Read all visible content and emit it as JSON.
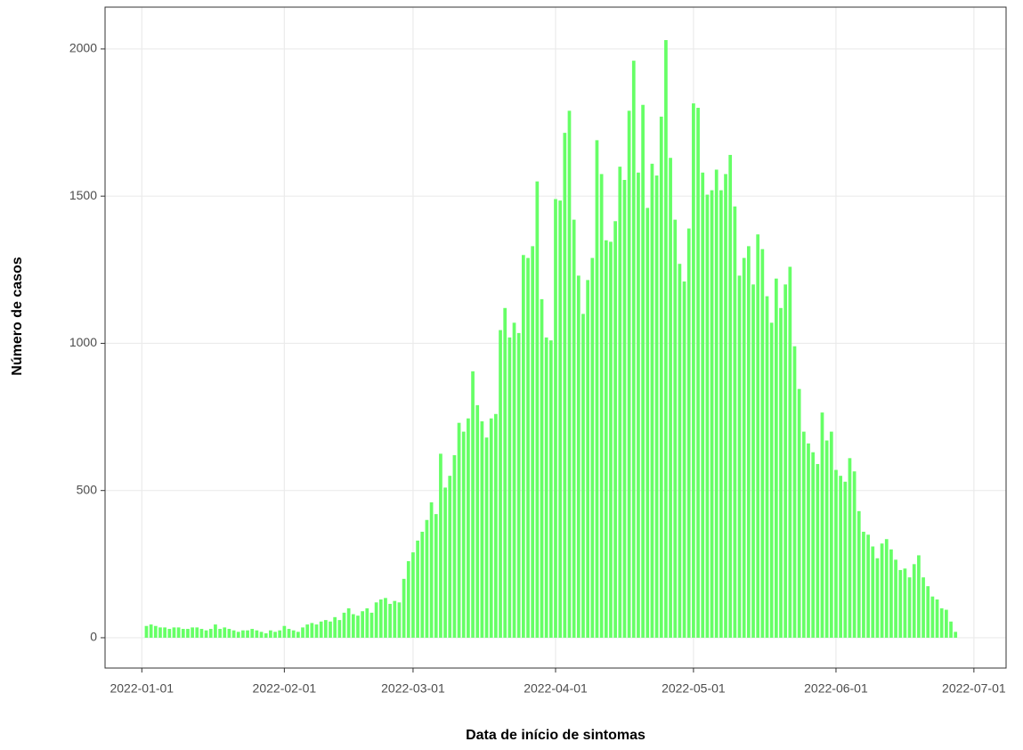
{
  "chart_data": {
    "type": "bar",
    "x_label": "Data de início de sintomas",
    "y_label": "Número de casos",
    "color": "#66ff66",
    "grid": true,
    "xlim": [
      "2021-12-24",
      "2022-07-08"
    ],
    "xticks": [
      "2022-01-01",
      "2022-02-01",
      "2022-03-01",
      "2022-04-01",
      "2022-05-01",
      "2022-06-01",
      "2022-07-01"
    ],
    "ylim": [
      -103,
      2142
    ],
    "yticks": [
      0,
      500,
      1000,
      1500,
      2000
    ],
    "x": [
      "2022-01-02",
      "2022-01-03",
      "2022-01-04",
      "2022-01-05",
      "2022-01-06",
      "2022-01-07",
      "2022-01-08",
      "2022-01-09",
      "2022-01-10",
      "2022-01-11",
      "2022-01-12",
      "2022-01-13",
      "2022-01-14",
      "2022-01-15",
      "2022-01-16",
      "2022-01-17",
      "2022-01-18",
      "2022-01-19",
      "2022-01-20",
      "2022-01-21",
      "2022-01-22",
      "2022-01-23",
      "2022-01-24",
      "2022-01-25",
      "2022-01-26",
      "2022-01-27",
      "2022-01-28",
      "2022-01-29",
      "2022-01-30",
      "2022-01-31",
      "2022-02-01",
      "2022-02-02",
      "2022-02-03",
      "2022-02-04",
      "2022-02-05",
      "2022-02-06",
      "2022-02-07",
      "2022-02-08",
      "2022-02-09",
      "2022-02-10",
      "2022-02-11",
      "2022-02-12",
      "2022-02-13",
      "2022-02-14",
      "2022-02-15",
      "2022-02-16",
      "2022-02-17",
      "2022-02-18",
      "2022-02-19",
      "2022-02-20",
      "2022-02-21",
      "2022-02-22",
      "2022-02-23",
      "2022-02-24",
      "2022-02-25",
      "2022-02-26",
      "2022-02-27",
      "2022-02-28",
      "2022-03-01",
      "2022-03-02",
      "2022-03-03",
      "2022-03-04",
      "2022-03-05",
      "2022-03-06",
      "2022-03-07",
      "2022-03-08",
      "2022-03-09",
      "2022-03-10",
      "2022-03-11",
      "2022-03-12",
      "2022-03-13",
      "2022-03-14",
      "2022-03-15",
      "2022-03-16",
      "2022-03-17",
      "2022-03-18",
      "2022-03-19",
      "2022-03-20",
      "2022-03-21",
      "2022-03-22",
      "2022-03-23",
      "2022-03-24",
      "2022-03-25",
      "2022-03-26",
      "2022-03-27",
      "2022-03-28",
      "2022-03-29",
      "2022-03-30",
      "2022-03-31",
      "2022-04-01",
      "2022-04-02",
      "2022-04-03",
      "2022-04-04",
      "2022-04-05",
      "2022-04-06",
      "2022-04-07",
      "2022-04-08",
      "2022-04-09",
      "2022-04-10",
      "2022-04-11",
      "2022-04-12",
      "2022-04-13",
      "2022-04-14",
      "2022-04-15",
      "2022-04-16",
      "2022-04-17",
      "2022-04-18",
      "2022-04-19",
      "2022-04-20",
      "2022-04-21",
      "2022-04-22",
      "2022-04-23",
      "2022-04-24",
      "2022-04-25",
      "2022-04-26",
      "2022-04-27",
      "2022-04-28",
      "2022-04-29",
      "2022-04-30",
      "2022-05-01",
      "2022-05-02",
      "2022-05-03",
      "2022-05-04",
      "2022-05-05",
      "2022-05-06",
      "2022-05-07",
      "2022-05-08",
      "2022-05-09",
      "2022-05-10",
      "2022-05-11",
      "2022-05-12",
      "2022-05-13",
      "2022-05-14",
      "2022-05-15",
      "2022-05-16",
      "2022-05-17",
      "2022-05-18",
      "2022-05-19",
      "2022-05-20",
      "2022-05-21",
      "2022-05-22",
      "2022-05-23",
      "2022-05-24",
      "2022-05-25",
      "2022-05-26",
      "2022-05-27",
      "2022-05-28",
      "2022-05-29",
      "2022-05-30",
      "2022-05-31",
      "2022-06-01",
      "2022-06-02",
      "2022-06-03",
      "2022-06-04",
      "2022-06-05",
      "2022-06-06",
      "2022-06-07",
      "2022-06-08",
      "2022-06-09",
      "2022-06-10",
      "2022-06-11",
      "2022-06-12",
      "2022-06-13",
      "2022-06-14",
      "2022-06-15",
      "2022-06-16",
      "2022-06-17",
      "2022-06-18",
      "2022-06-19",
      "2022-06-20",
      "2022-06-21",
      "2022-06-22",
      "2022-06-23",
      "2022-06-24",
      "2022-06-25",
      "2022-06-26",
      "2022-06-27"
    ],
    "values": [
      40,
      45,
      40,
      35,
      35,
      30,
      35,
      35,
      30,
      30,
      35,
      35,
      30,
      25,
      30,
      45,
      30,
      35,
      30,
      25,
      20,
      25,
      25,
      30,
      25,
      20,
      15,
      25,
      20,
      25,
      40,
      30,
      25,
      20,
      35,
      45,
      50,
      45,
      55,
      60,
      55,
      70,
      60,
      85,
      100,
      80,
      75,
      90,
      100,
      85,
      120,
      130,
      135,
      115,
      125,
      120,
      200,
      260,
      290,
      330,
      360,
      400,
      460,
      420,
      625,
      510,
      550,
      620,
      730,
      700,
      745,
      905,
      790,
      735,
      680,
      745,
      760,
      1045,
      1120,
      1020,
      1070,
      1035,
      1300,
      1290,
      1330,
      1550,
      1150,
      1020,
      1010,
      1490,
      1485,
      1715,
      1790,
      1420,
      1230,
      1100,
      1215,
      1290,
      1690,
      1575,
      1350,
      1345,
      1415,
      1600,
      1555,
      1790,
      1960,
      1580,
      1810,
      1460,
      1610,
      1570,
      1770,
      2030,
      1630,
      1420,
      1270,
      1210,
      1390,
      1815,
      1800,
      1580,
      1505,
      1520,
      1590,
      1520,
      1575,
      1640,
      1465,
      1230,
      1290,
      1330,
      1200,
      1370,
      1320,
      1160,
      1070,
      1220,
      1120,
      1200,
      1260,
      990,
      845,
      700,
      660,
      630,
      590,
      765,
      670,
      700,
      570,
      550,
      530,
      610,
      565,
      430,
      360,
      350,
      310,
      270,
      320,
      335,
      300,
      265,
      230,
      235,
      205,
      250,
      280,
      205,
      175,
      140,
      130,
      100,
      95,
      55,
      20
    ]
  }
}
